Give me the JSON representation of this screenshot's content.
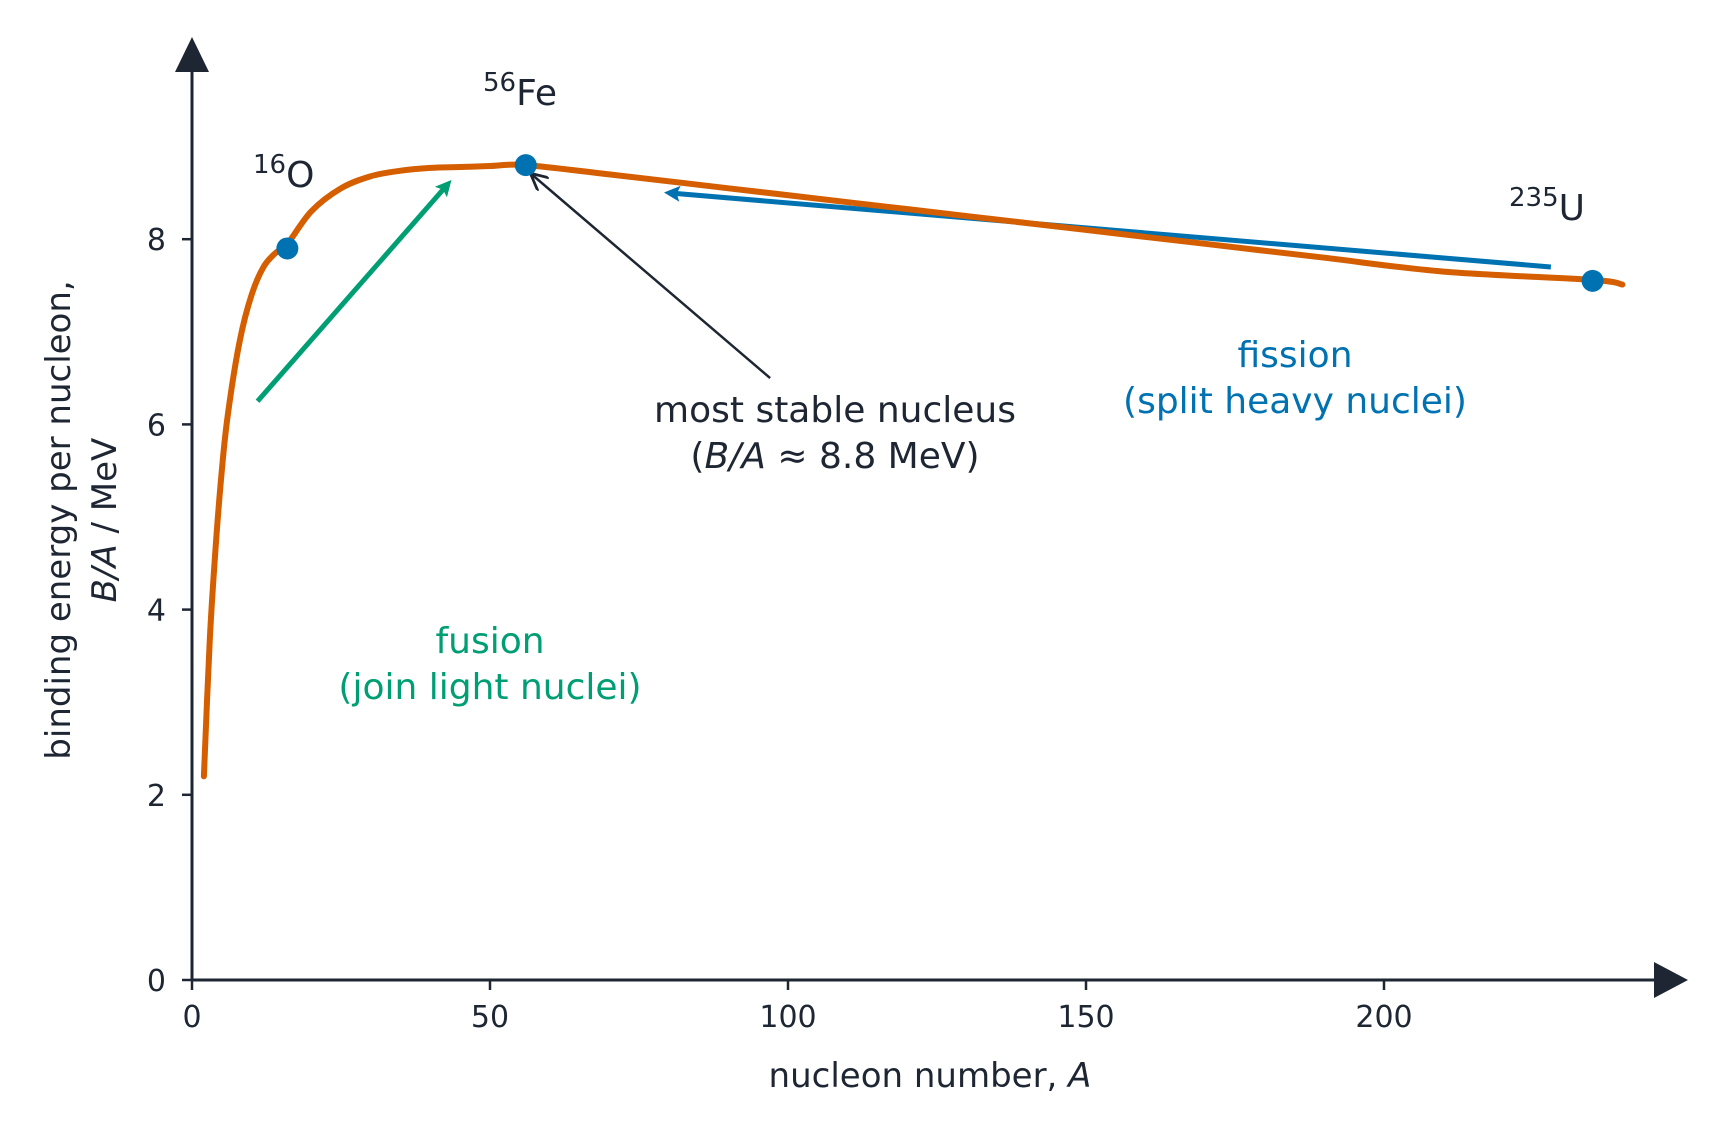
{
  "chart_data": {
    "type": "line",
    "xlabel": "nucleon number, ",
    "xlabel_var": "A",
    "ylabel_line1": "binding energy per nucleon,",
    "ylabel_var": "B/A",
    "ylabel_unit": " / MeV",
    "xlim": [
      0,
      245
    ],
    "ylim": [
      0,
      10
    ],
    "x_ticks": [
      0,
      50,
      100,
      150,
      200
    ],
    "y_ticks": [
      0,
      2,
      4,
      6,
      8
    ],
    "grid": false,
    "curve": {
      "color": "#d55e00",
      "x": [
        2,
        3,
        4,
        5,
        6,
        8,
        10,
        12,
        14,
        16,
        20,
        25,
        30,
        35,
        40,
        45,
        50,
        56,
        70,
        90,
        110,
        130,
        150,
        170,
        190,
        210,
        235,
        240
      ],
      "y": [
        2.2,
        3.7,
        4.7,
        5.5,
        6.1,
        6.9,
        7.4,
        7.7,
        7.85,
        7.95,
        8.3,
        8.55,
        8.68,
        8.74,
        8.77,
        8.78,
        8.79,
        8.8,
        8.7,
        8.55,
        8.4,
        8.25,
        8.1,
        7.95,
        7.8,
        7.65,
        7.56,
        7.51
      ]
    },
    "points": [
      {
        "label_mass": "16",
        "label_symbol": "O",
        "x": 16,
        "y": 7.9,
        "color": "#0072b2"
      },
      {
        "label_mass": "56",
        "label_symbol": "Fe",
        "x": 56,
        "y": 8.8,
        "color": "#0072b2"
      },
      {
        "label_mass": "235",
        "label_symbol": "U",
        "x": 235,
        "y": 7.55,
        "color": "#0072b2"
      }
    ],
    "annotations": {
      "fusion": {
        "line1": "fusion",
        "line2": "(join light nuclei)",
        "color": "#009e73",
        "arrow_from": [
          11,
          6.25
        ],
        "arrow_to": [
          43,
          8.6
        ]
      },
      "fission": {
        "line1": "fission",
        "line2": "(split heavy nuclei)",
        "color": "#0072b2",
        "arrow_from": [
          228,
          7.7
        ],
        "arrow_to": [
          80,
          8.5
        ]
      },
      "stable": {
        "line1": "most stable nucleus",
        "line2_open": "(",
        "line2_var": "B/A",
        "line2_rest": " ≈ 8.8 MeV)",
        "color": "#1e2633",
        "arrow_from": [
          97,
          6.5
        ],
        "arrow_to": [
          57,
          8.7
        ]
      }
    }
  }
}
